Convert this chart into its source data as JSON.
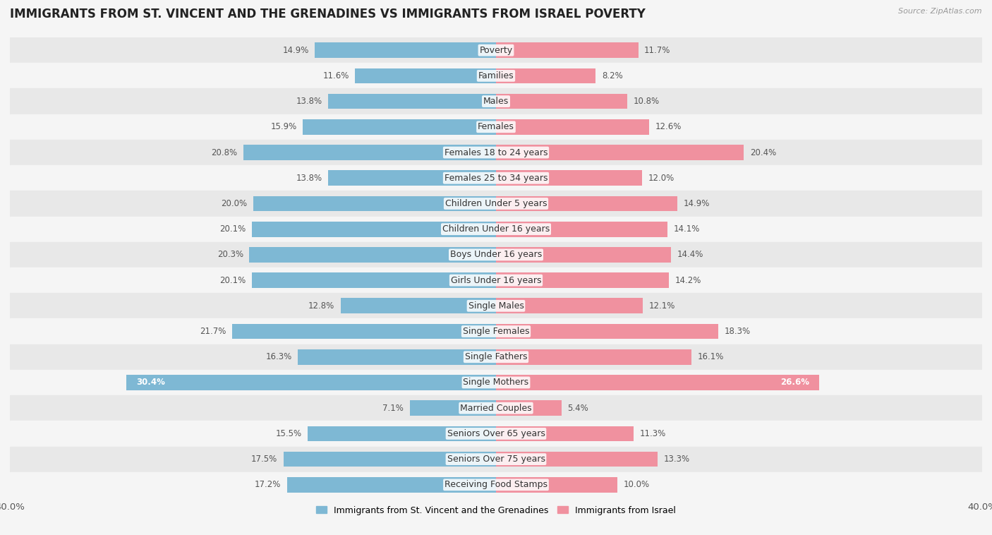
{
  "title": "IMMIGRANTS FROM ST. VINCENT AND THE GRENADINES VS IMMIGRANTS FROM ISRAEL POVERTY",
  "source": "Source: ZipAtlas.com",
  "categories": [
    "Poverty",
    "Families",
    "Males",
    "Females",
    "Females 18 to 24 years",
    "Females 25 to 34 years",
    "Children Under 5 years",
    "Children Under 16 years",
    "Boys Under 16 years",
    "Girls Under 16 years",
    "Single Males",
    "Single Females",
    "Single Fathers",
    "Single Mothers",
    "Married Couples",
    "Seniors Over 65 years",
    "Seniors Over 75 years",
    "Receiving Food Stamps"
  ],
  "left_values": [
    14.9,
    11.6,
    13.8,
    15.9,
    20.8,
    13.8,
    20.0,
    20.1,
    20.3,
    20.1,
    12.8,
    21.7,
    16.3,
    30.4,
    7.1,
    15.5,
    17.5,
    17.2
  ],
  "right_values": [
    11.7,
    8.2,
    10.8,
    12.6,
    20.4,
    12.0,
    14.9,
    14.1,
    14.4,
    14.2,
    12.1,
    18.3,
    16.1,
    26.6,
    5.4,
    11.3,
    13.3,
    10.0
  ],
  "left_color": "#7eb8d4",
  "right_color": "#f0919f",
  "single_mothers_left_color": "#6baed6",
  "single_mothers_right_color": "#e8728a",
  "left_label": "Immigrants from St. Vincent and the Grenadines",
  "right_label": "Immigrants from Israel",
  "axis_limit": 40.0,
  "background_color": "#f5f5f5",
  "row_alt_color": "#e8e8e8",
  "row_main_color": "#f5f5f5",
  "title_fontsize": 12,
  "label_fontsize": 9,
  "value_fontsize": 8.5,
  "axis_label_fontsize": 9.5
}
